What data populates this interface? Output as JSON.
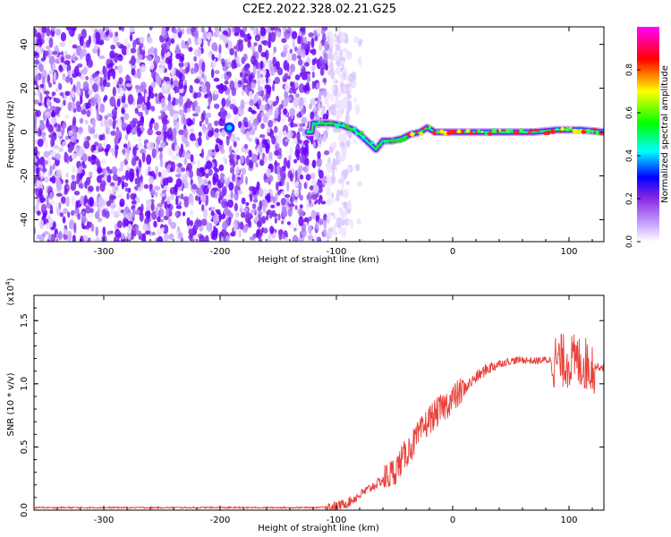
{
  "title": "C2E2.2022.328.02.21.G25",
  "chart_data": [
    {
      "type": "heatmap",
      "xlabel": "Height of straight line (km)",
      "ylabel": "Frequency (Hz)",
      "xlim": [
        -360,
        130
      ],
      "ylim": [
        -50,
        48
      ],
      "xticks": [
        -300,
        -200,
        -100,
        0,
        100
      ],
      "yticks": [
        -40,
        -20,
        0,
        20,
        40
      ],
      "colorbar": {
        "label": "Normalized spectral amplitude",
        "range": [
          0.0,
          1.0
        ],
        "ticks": [
          "0.0",
          "0.2",
          "0.4",
          "0.6",
          "0.8"
        ],
        "colors": [
          "#ffffff",
          "#8a2be2",
          "#0000ff",
          "#00ffff",
          "#00ff00",
          "#ffff00",
          "#ff0000",
          "#ff00ff"
        ]
      },
      "tick_labels_x": [
        "-300",
        "-200",
        "-100",
        "0",
        "100"
      ],
      "tick_labels_y": [
        "-40",
        "-20",
        "0",
        "20",
        "40"
      ],
      "ridge": {
        "x": [
          -120,
          -105,
          -95,
          -85,
          -78,
          -72,
          -66,
          -60,
          -52,
          -44,
          -36,
          -28,
          -22,
          -15,
          -5,
          10,
          30,
          50,
          70,
          90,
          110,
          130
        ],
        "y": [
          4,
          4,
          3,
          1,
          -2,
          -5,
          -8,
          -4,
          -4,
          -3,
          -1,
          0,
          2,
          0,
          0,
          0,
          0,
          0,
          0,
          1,
          1,
          0
        ]
      },
      "noise_region_x": [
        -360,
        -100
      ]
    },
    {
      "type": "line",
      "xlabel": "Height of straight line (km)",
      "ylabel": "SNR (10 * v/v)",
      "yscale_label": "(x10",
      "yscale_exp": "4",
      "yscale_close": ")",
      "xlim": [
        -360,
        130
      ],
      "ylim": [
        0,
        1.7
      ],
      "xticks": [
        -300,
        -200,
        -100,
        0,
        100
      ],
      "yticks": [
        0.0,
        0.5,
        1.0,
        1.5
      ],
      "tick_labels_x": [
        "-300",
        "-200",
        "-100",
        "0",
        "100"
      ],
      "tick_labels_y": [
        "0.0",
        "0.5",
        "1.0",
        "1.5"
      ],
      "color": "#e8403a",
      "series": [
        {
          "x": [
            -360,
            -300,
            -200,
            -150,
            -120,
            -100,
            -90,
            -80,
            -70,
            -60,
            -50,
            -40,
            -30,
            -20,
            -10,
            0,
            10,
            20,
            30,
            40,
            50,
            60,
            70,
            80,
            90,
            100,
            110,
            120,
            130
          ],
          "y": [
            0.02,
            0.02,
            0.02,
            0.02,
            0.02,
            0.03,
            0.06,
            0.12,
            0.18,
            0.24,
            0.31,
            0.45,
            0.58,
            0.72,
            0.8,
            0.88,
            0.96,
            1.05,
            1.12,
            1.16,
            1.18,
            1.19,
            1.18,
            1.19,
            1.18,
            1.18,
            1.17,
            1.14,
            1.13
          ]
        }
      ]
    }
  ]
}
